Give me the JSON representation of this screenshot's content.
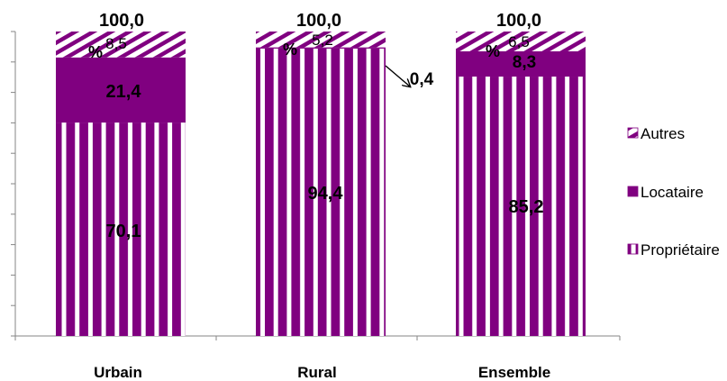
{
  "chart_data": {
    "type": "bar",
    "stacked": true,
    "categories": [
      "Urbain",
      "Rural",
      "Ensemble"
    ],
    "series": [
      {
        "name": "Propriétaire",
        "values": [
          70.1,
          94.4,
          85.2
        ],
        "labels": [
          "70,1",
          "94,4",
          "85,2"
        ],
        "pattern": "vertical-stripes",
        "color": "#800080"
      },
      {
        "name": "Locataire",
        "values": [
          21.4,
          0.4,
          8.3
        ],
        "labels": [
          "21,4",
          "0,4",
          "8,3"
        ],
        "pattern": "solid",
        "color": "#800080"
      },
      {
        "name": "Autres",
        "values": [
          8.5,
          5.2,
          6.5
        ],
        "labels": [
          "8,5",
          "5,2",
          "6,5"
        ],
        "pattern": "diagonal-stripes",
        "color": "#800080"
      }
    ],
    "totals": [
      "100,0",
      "100,0",
      "100,0"
    ],
    "percent_marks": [
      "%",
      "%",
      "%"
    ],
    "ylim": [
      0,
      100
    ],
    "grid": false,
    "legend_position": "right"
  }
}
